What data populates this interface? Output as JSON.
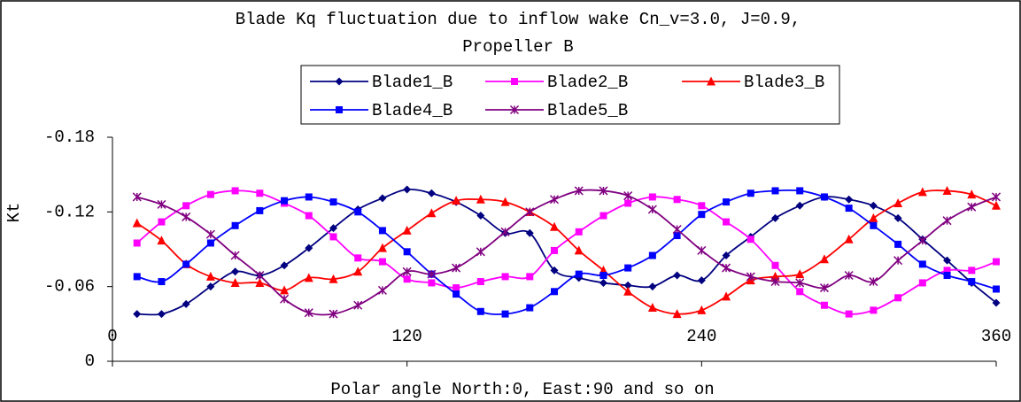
{
  "chart_data": {
    "type": "line",
    "title": [
      "Blade Kq fluctuation due to inflow wake Cn_v=3.0, J=0.9,",
      "Propeller B"
    ],
    "x_label": "Polar angle North:0, East:90 and so on",
    "y_label": "Kt",
    "x": [
      10,
      20,
      30,
      40,
      50,
      60,
      70,
      80,
      90,
      100,
      110,
      120,
      130,
      140,
      150,
      160,
      170,
      180,
      190,
      200,
      210,
      220,
      230,
      240,
      250,
      260,
      270,
      280,
      290,
      300,
      310,
      320,
      330,
      340,
      350,
      360
    ],
    "xlim": [
      0,
      360
    ],
    "xticks": [
      0,
      120,
      240,
      360
    ],
    "ylim": [
      0,
      -0.18
    ],
    "yticks": [
      0,
      -0.06,
      -0.12,
      -0.18
    ],
    "grid": false,
    "legend": "top",
    "series": [
      {
        "name": "Blade1_B",
        "color": "#000080",
        "marker": "diamond",
        "values": [
          -0.038,
          -0.038,
          -0.046,
          -0.06,
          -0.072,
          -0.069,
          -0.077,
          -0.091,
          -0.107,
          -0.122,
          -0.131,
          -0.138,
          -0.135,
          -0.128,
          -0.117,
          -0.103,
          -0.103,
          -0.073,
          -0.067,
          -0.063,
          -0.061,
          -0.06,
          -0.069,
          -0.065,
          -0.085,
          -0.1,
          -0.115,
          -0.125,
          -0.132,
          -0.13,
          -0.125,
          -0.115,
          -0.098,
          -0.081,
          -0.063,
          -0.047
        ]
      },
      {
        "name": "Blade2_B",
        "color": "#ff00ff",
        "marker": "square",
        "values": [
          -0.095,
          -0.112,
          -0.125,
          -0.134,
          -0.137,
          -0.135,
          -0.127,
          -0.117,
          -0.1,
          -0.083,
          -0.08,
          -0.066,
          -0.063,
          -0.059,
          -0.064,
          -0.068,
          -0.068,
          -0.089,
          -0.104,
          -0.117,
          -0.127,
          -0.132,
          -0.13,
          -0.125,
          -0.112,
          -0.098,
          -0.077,
          -0.056,
          -0.045,
          -0.038,
          -0.041,
          -0.051,
          -0.063,
          -0.073,
          -0.073,
          -0.08
        ]
      },
      {
        "name": "Blade3_B",
        "color": "#ff0000",
        "marker": "triangle",
        "values": [
          -0.111,
          -0.097,
          -0.078,
          -0.068,
          -0.063,
          -0.063,
          -0.057,
          -0.067,
          -0.066,
          -0.072,
          -0.091,
          -0.105,
          -0.119,
          -0.129,
          -0.13,
          -0.128,
          -0.12,
          -0.108,
          -0.089,
          -0.073,
          -0.056,
          -0.043,
          -0.038,
          -0.041,
          -0.052,
          -0.065,
          -0.068,
          -0.07,
          -0.082,
          -0.098,
          -0.115,
          -0.127,
          -0.136,
          -0.137,
          -0.134,
          -0.125
        ]
      },
      {
        "name": "Blade4_B",
        "color": "#0000ff",
        "marker": "square",
        "values": [
          -0.068,
          -0.064,
          -0.078,
          -0.095,
          -0.109,
          -0.121,
          -0.129,
          -0.132,
          -0.128,
          -0.12,
          -0.105,
          -0.088,
          -0.07,
          -0.054,
          -0.04,
          -0.038,
          -0.043,
          -0.056,
          -0.07,
          -0.069,
          -0.075,
          -0.085,
          -0.101,
          -0.118,
          -0.128,
          -0.135,
          -0.137,
          -0.137,
          -0.132,
          -0.123,
          -0.109,
          -0.094,
          -0.078,
          -0.069,
          -0.064,
          -0.058
        ]
      },
      {
        "name": "Blade5_B",
        "color": "#800080",
        "marker": "star",
        "values": [
          -0.132,
          -0.126,
          -0.116,
          -0.102,
          -0.085,
          -0.069,
          -0.05,
          -0.039,
          -0.038,
          -0.045,
          -0.057,
          -0.072,
          -0.07,
          -0.075,
          -0.088,
          -0.104,
          -0.12,
          -0.13,
          -0.137,
          -0.137,
          -0.133,
          -0.122,
          -0.106,
          -0.089,
          -0.075,
          -0.068,
          -0.064,
          -0.063,
          -0.059,
          -0.069,
          -0.064,
          -0.081,
          -0.097,
          -0.113,
          -0.124,
          -0.132
        ]
      }
    ]
  }
}
